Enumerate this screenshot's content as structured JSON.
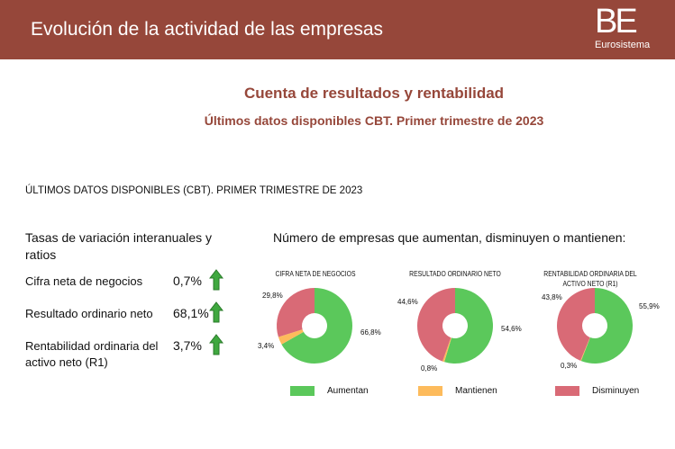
{
  "header": {
    "title": "Evolución de la actividad de las empresas",
    "logo_text": "BE",
    "logo_sub": "Eurosistema"
  },
  "title": "Cuenta de resultados y rentabilidad",
  "subtitle": "Últimos datos disponibles CBT. Primer trimestre de 2023",
  "section_label": "ÚLTIMOS DATOS DISPONIBLES (CBT). PRIMER TRIMESTRE DE 2023",
  "left": {
    "title": "Tasas de variación interanuales y ratios",
    "rows": [
      {
        "label": "Cifra neta de negocios",
        "value": "0,7%",
        "trend": "up"
      },
      {
        "label": "Resultado ordinario neto",
        "value": "68,1%",
        "trend": "up"
      },
      {
        "label": "Rentabilidad ordinaria del activo neto (R1)",
        "value": "3,7%",
        "trend": "up"
      }
    ]
  },
  "right_title": "Número de empresas que aumentan, disminuyen o mantienen:",
  "colors": {
    "aumentan": "#5bc85b",
    "mantienen": "#fdbb5c",
    "disminuyen": "#d96a76",
    "header": "#96473a",
    "arrow": "#3fa83f"
  },
  "chart_data": [
    {
      "type": "pie",
      "title": "CIFRA NETA DE NEGOCIOS",
      "categories": [
        "Aumentan",
        "Mantienen",
        "Disminuyen"
      ],
      "values": [
        66.8,
        3.4,
        29.8
      ],
      "labels": [
        "66,8%",
        "3,4%",
        "29,8%"
      ]
    },
    {
      "type": "pie",
      "title": "RESULTADO ORDINARIO NETO",
      "categories": [
        "Aumentan",
        "Mantienen",
        "Disminuyen"
      ],
      "values": [
        54.6,
        0.8,
        44.6
      ],
      "labels": [
        "54,6%",
        "0,8%",
        "44,6%"
      ]
    },
    {
      "type": "pie",
      "title": "RENTABILIDAD ORDINARIA DEL ACTIVO NETO (R1)",
      "categories": [
        "Aumentan",
        "Mantienen",
        "Disminuyen"
      ],
      "values": [
        55.9,
        0.3,
        43.8
      ],
      "labels": [
        "55,9%",
        "0,3%",
        "43,8%"
      ]
    }
  ],
  "legend": [
    "Aumentan",
    "Mantienen",
    "Disminuyen"
  ]
}
